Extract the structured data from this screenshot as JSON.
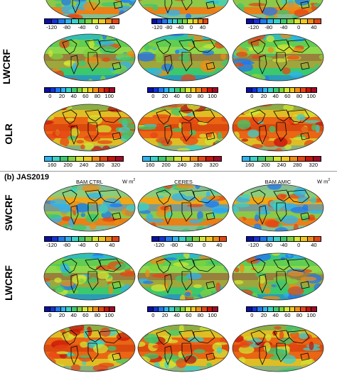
{
  "section_b": {
    "title": "(b) JAS2019"
  },
  "columns": [
    "BAM CTRL",
    "CERES",
    "BAM AMIC"
  ],
  "units": "W m",
  "units_sup": "2",
  "variables": {
    "swcrf": {
      "label": "SWCRF",
      "ticks": [
        "-120",
        "-80",
        "-40",
        "0",
        "40"
      ]
    },
    "lwcrf": {
      "label": "LWCRF",
      "ticks": [
        "0",
        "20",
        "40",
        "60",
        "80",
        "100"
      ]
    },
    "olr": {
      "label": "OLR",
      "ticks": [
        "160",
        "200",
        "240",
        "280",
        "320"
      ]
    }
  },
  "colorbar_palette": [
    "#0a10a0",
    "#1432d8",
    "#1e78f0",
    "#2cb4f0",
    "#39d2c8",
    "#3cc86e",
    "#7fd23c",
    "#d2e632",
    "#f0c81e",
    "#f08c14",
    "#e64614",
    "#c8140a",
    "#a00a28"
  ]
}
